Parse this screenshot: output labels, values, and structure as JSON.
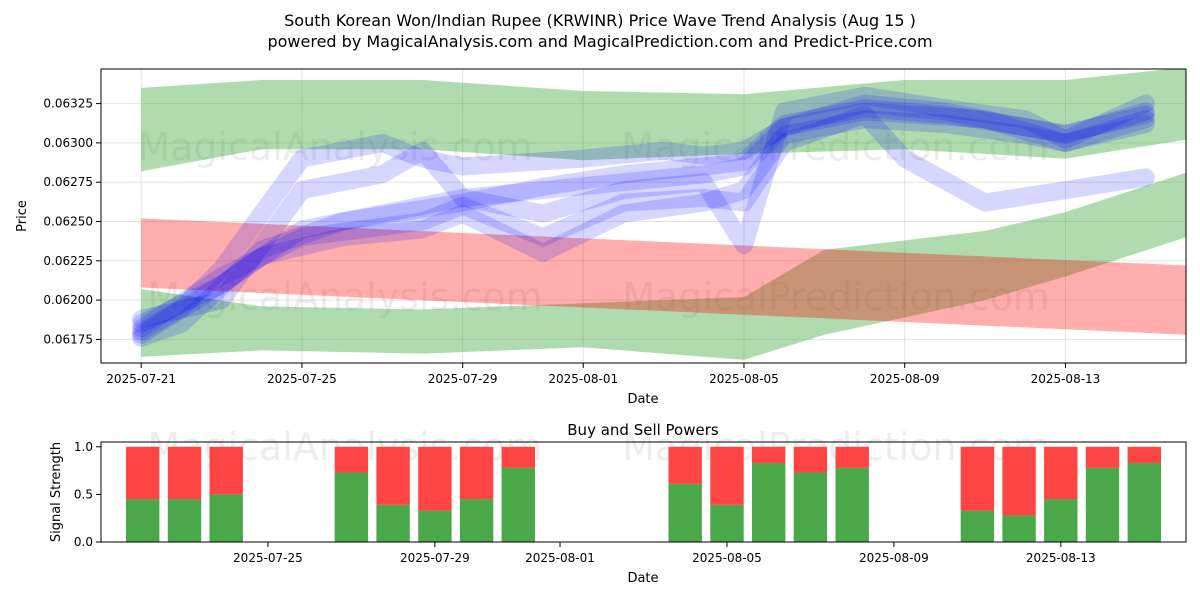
{
  "title_line1": "South Korean Won/Indian Rupee (KRWINR) Price Wave Trend Analysis (Aug 15 )",
  "title_line2": "powered by MagicalAnalysis.com and MagicalPrediction.com and Predict-Price.com",
  "watermarks": [
    "MagicalAnalysis.com",
    "MagicalPrediction.com"
  ],
  "colors": {
    "green": "#2ca02c",
    "red": "#ff0000",
    "blue": "#0000ff",
    "buy": "#4aa84a",
    "sell": "#ff4444"
  },
  "chart_data": [
    {
      "type": "area",
      "xlabel": "Date",
      "ylabel": "Price",
      "x_ticks": [
        "2025-07-21",
        "2025-07-25",
        "2025-07-29",
        "2025-08-01",
        "2025-08-05",
        "2025-08-09",
        "2025-08-13"
      ],
      "y_ticks": [
        "0.06175",
        "0.06200",
        "0.06225",
        "0.06250",
        "0.06275",
        "0.06300",
        "0.06325"
      ],
      "xlim": [
        "2025-07-20",
        "2025-08-16"
      ],
      "ylim": [
        0.0616,
        0.06347
      ],
      "grid": true,
      "bands": [
        {
          "color": "green",
          "upper": [
            [
              "2025-07-21",
              0.06335
            ],
            [
              "2025-07-24",
              0.0634
            ],
            [
              "2025-07-28",
              0.0634
            ],
            [
              "2025-08-01",
              0.06333
            ],
            [
              "2025-08-05",
              0.06331
            ],
            [
              "2025-08-09",
              0.0634
            ],
            [
              "2025-08-13",
              0.0634
            ],
            [
              "2025-08-16",
              0.06348
            ]
          ],
          "lower": [
            [
              "2025-07-21",
              0.06282
            ],
            [
              "2025-07-24",
              0.06296
            ],
            [
              "2025-07-28",
              0.06296
            ],
            [
              "2025-08-01",
              0.06289
            ],
            [
              "2025-08-05",
              0.06293
            ],
            [
              "2025-08-09",
              0.06296
            ],
            [
              "2025-08-13",
              0.0629
            ],
            [
              "2025-08-16",
              0.06302
            ]
          ]
        },
        {
          "color": "green",
          "upper": [
            [
              "2025-07-21",
              0.06207
            ],
            [
              "2025-07-24",
              0.06196
            ],
            [
              "2025-07-28",
              0.06194
            ],
            [
              "2025-08-01",
              0.06198
            ],
            [
              "2025-08-05",
              0.06202
            ],
            [
              "2025-08-07",
              0.06232
            ],
            [
              "2025-08-11",
              0.06244
            ],
            [
              "2025-08-13",
              0.06256
            ],
            [
              "2025-08-16",
              0.06281
            ]
          ],
          "lower": [
            [
              "2025-07-21",
              0.06164
            ],
            [
              "2025-07-24",
              0.06168
            ],
            [
              "2025-07-28",
              0.06166
            ],
            [
              "2025-08-01",
              0.0617
            ],
            [
              "2025-08-05",
              0.06162
            ],
            [
              "2025-08-07",
              0.06178
            ],
            [
              "2025-08-11",
              0.062
            ],
            [
              "2025-08-13",
              0.06215
            ],
            [
              "2025-08-16",
              0.0624
            ]
          ]
        },
        {
          "color": "red",
          "upper": [
            [
              "2025-07-21",
              0.06252
            ],
            [
              "2025-08-16",
              0.06222
            ]
          ],
          "lower": [
            [
              "2025-07-21",
              0.06208
            ],
            [
              "2025-08-16",
              0.06178
            ]
          ]
        }
      ],
      "wave_series": [
        {
          "color": "blue",
          "points": [
            [
              "2025-07-21",
              0.0618
            ],
            [
              "2025-07-22",
              0.06195
            ],
            [
              "2025-07-23",
              0.0622
            ],
            [
              "2025-07-24",
              0.06255
            ],
            [
              "2025-07-25",
              0.0629
            ],
            [
              "2025-07-27",
              0.063
            ],
            [
              "2025-07-28",
              0.0629
            ],
            [
              "2025-07-29",
              0.06285
            ],
            [
              "2025-08-01",
              0.0629
            ],
            [
              "2025-08-03",
              0.06295
            ],
            [
              "2025-08-04",
              0.06292
            ],
            [
              "2025-08-05",
              0.06295
            ],
            [
              "2025-08-06",
              0.0631
            ],
            [
              "2025-08-08",
              0.0632
            ],
            [
              "2025-08-11",
              0.06315
            ],
            [
              "2025-08-13",
              0.063
            ],
            [
              "2025-08-15",
              0.06315
            ]
          ]
        },
        {
          "color": "blue",
          "points": [
            [
              "2025-07-21",
              0.06185
            ],
            [
              "2025-07-23",
              0.0621
            ],
            [
              "2025-07-25",
              0.06245
            ],
            [
              "2025-07-27",
              0.06255
            ],
            [
              "2025-07-29",
              0.06265
            ],
            [
              "2025-07-31",
              0.0627
            ],
            [
              "2025-08-02",
              0.06275
            ],
            [
              "2025-08-04",
              0.0628
            ],
            [
              "2025-08-05",
              0.06285
            ],
            [
              "2025-08-06",
              0.0631
            ],
            [
              "2025-08-08",
              0.06325
            ],
            [
              "2025-08-10",
              0.0632
            ],
            [
              "2025-08-12",
              0.0631
            ],
            [
              "2025-08-13",
              0.06305
            ],
            [
              "2025-08-15",
              0.0632
            ]
          ]
        },
        {
          "color": "blue",
          "points": [
            [
              "2025-07-21",
              0.06182
            ],
            [
              "2025-07-23",
              0.06215
            ],
            [
              "2025-07-25",
              0.0624
            ],
            [
              "2025-07-28",
              0.0625
            ],
            [
              "2025-07-29",
              0.0626
            ],
            [
              "2025-07-31",
              0.0624
            ],
            [
              "2025-08-02",
              0.06262
            ],
            [
              "2025-08-04",
              0.06265
            ],
            [
              "2025-08-05",
              0.06262
            ],
            [
              "2025-08-06",
              0.063
            ],
            [
              "2025-08-08",
              0.06318
            ],
            [
              "2025-08-09",
              0.0629
            ],
            [
              "2025-08-11",
              0.06262
            ],
            [
              "2025-08-13",
              0.0627
            ],
            [
              "2025-08-15",
              0.06278
            ]
          ]
        },
        {
          "color": "blue",
          "points": [
            [
              "2025-07-21",
              0.06188
            ],
            [
              "2025-07-23",
              0.062
            ],
            [
              "2025-07-25",
              0.0627
            ],
            [
              "2025-07-27",
              0.0628
            ],
            [
              "2025-07-28",
              0.06295
            ],
            [
              "2025-07-29",
              0.06265
            ],
            [
              "2025-07-31",
              0.06255
            ],
            [
              "2025-08-02",
              0.0627
            ],
            [
              "2025-08-04",
              0.06275
            ],
            [
              "2025-08-05",
              0.06235
            ],
            [
              "2025-08-06",
              0.0632
            ],
            [
              "2025-08-08",
              0.0633
            ],
            [
              "2025-08-10",
              0.06322
            ],
            [
              "2025-08-12",
              0.06315
            ],
            [
              "2025-08-13",
              0.06302
            ],
            [
              "2025-08-15",
              0.06325
            ]
          ]
        },
        {
          "color": "blue",
          "points": [
            [
              "2025-07-21",
              0.06178
            ],
            [
              "2025-07-23",
              0.0621
            ],
            [
              "2025-07-24",
              0.06228
            ],
            [
              "2025-07-26",
              0.0624
            ],
            [
              "2025-07-28",
              0.06245
            ],
            [
              "2025-07-29",
              0.06255
            ],
            [
              "2025-07-31",
              0.0623
            ],
            [
              "2025-08-02",
              0.06255
            ],
            [
              "2025-08-04",
              0.06262
            ],
            [
              "2025-08-05",
              0.0627
            ],
            [
              "2025-08-06",
              0.06305
            ],
            [
              "2025-08-08",
              0.06315
            ],
            [
              "2025-08-10",
              0.06312
            ],
            [
              "2025-08-12",
              0.06305
            ],
            [
              "2025-08-13",
              0.063
            ],
            [
              "2025-08-15",
              0.06312
            ]
          ]
        },
        {
          "color": "blue",
          "points": [
            [
              "2025-07-21",
              0.06176
            ],
            [
              "2025-07-22",
              0.06185
            ],
            [
              "2025-07-24",
              0.06232
            ],
            [
              "2025-07-26",
              0.0625
            ],
            [
              "2025-07-28",
              0.06258
            ],
            [
              "2025-07-29",
              0.06262
            ],
            [
              "2025-07-31",
              0.06272
            ],
            [
              "2025-08-02",
              0.0628
            ],
            [
              "2025-08-04",
              0.06285
            ],
            [
              "2025-08-05",
              0.06288
            ],
            [
              "2025-08-06",
              0.06312
            ],
            [
              "2025-08-08",
              0.06322
            ],
            [
              "2025-08-10",
              0.06318
            ],
            [
              "2025-08-12",
              0.0631
            ],
            [
              "2025-08-13",
              0.06306
            ],
            [
              "2025-08-15",
              0.06318
            ]
          ]
        }
      ]
    },
    {
      "type": "bar",
      "title": "Buy and Sell Powers",
      "xlabel": "Date",
      "ylabel": "Signal Strength",
      "x_ticks": [
        "2025-07-25",
        "2025-07-29",
        "2025-08-01",
        "2025-08-05",
        "2025-08-09",
        "2025-08-13"
      ],
      "y_ticks": [
        "0.0",
        "0.5",
        "1.0"
      ],
      "xlim": [
        "2025-07-21",
        "2025-08-16"
      ],
      "ylim": [
        0,
        1.05
      ],
      "categories": [
        "2025-07-22",
        "2025-07-23",
        "2025-07-24",
        "2025-07-27",
        "2025-07-28",
        "2025-07-29",
        "2025-07-30",
        "2025-07-31",
        "2025-08-04",
        "2025-08-05",
        "2025-08-06",
        "2025-08-07",
        "2025-08-08",
        "2025-08-11",
        "2025-08-12",
        "2025-08-13",
        "2025-08-14",
        "2025-08-15"
      ],
      "series": [
        {
          "name": "buy",
          "values": [
            0.45,
            0.45,
            0.5,
            0.73,
            0.39,
            0.33,
            0.45,
            0.78,
            0.61,
            0.39,
            0.83,
            0.73,
            0.78,
            0.33,
            0.28,
            0.45,
            0.78,
            0.83
          ]
        },
        {
          "name": "sell",
          "values": [
            0.55,
            0.55,
            0.5,
            0.27,
            0.61,
            0.67,
            0.55,
            0.22,
            0.39,
            0.61,
            0.17,
            0.27,
            0.22,
            0.67,
            0.72,
            0.55,
            0.22,
            0.17
          ]
        }
      ]
    }
  ]
}
